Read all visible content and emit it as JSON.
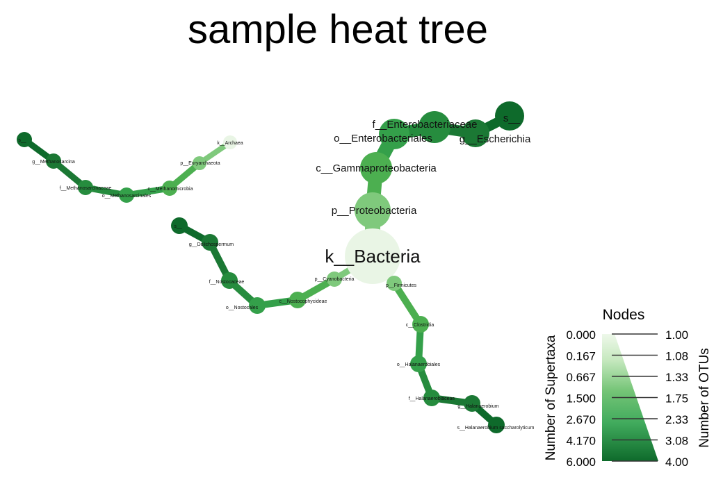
{
  "title": "sample heat tree",
  "legend": {
    "title": "Nodes",
    "left_axis_label": "Number of Supertaxa",
    "right_axis_label": "Number of OTUs",
    "left_ticks": [
      "0.000",
      "0.167",
      "0.667",
      "1.500",
      "2.670",
      "4.170",
      "6.000"
    ],
    "right_ticks": [
      "1.00",
      "1.08",
      "1.33",
      "1.75",
      "2.33",
      "3.08",
      "4.00"
    ],
    "color_low": "#e9f5e5",
    "color_high": "#0e6a2b"
  },
  "taxa": {
    "k_bacteria": "k__Bacteria",
    "p_proteobacteria": "p__Proteobacteria",
    "c_gammaproteobacteria": "c__Gammaproteobacteria",
    "o_enterobacteriales": "o__Enterobacteriales",
    "f_enterobacteriaceae": "f__Enterobacteriaceae",
    "g_escherichia": "g__Escherichia",
    "s_escherichia": "s__",
    "p_cyanobacteria": "p__Cyanobacteria",
    "c_nostocophycideae": "c__Nostocophycideae",
    "o_nostocales": "o__Nostocales",
    "f_nostocaceae": "f__Nostocaceae",
    "g_dolichospermum": "g__Dolichospermum",
    "s_dolichospermum": "s__",
    "p_firmicutes": "p__Firmicutes",
    "c_clostridia": "c__Clostridia",
    "o_halanaerobiales": "o__Halanaerobiales",
    "f_halanaerobiaceae": "f__Halanaerobiaceae",
    "g_halanaerobium": "g__Halanaerobium",
    "s_halanaerobium": "s__Halanaerobium saccharolyticum",
    "k_archaea": "k__Archaea",
    "p_euryarchaeota": "p__Euryarchaeota",
    "c_methanomicrobia": "c__Methanomicrobia",
    "o_methanosarcinales": "o__Methanosarcinales",
    "f_methanosarcinaceae": "f__Methanosarcinaceae",
    "g_methanosarcina": "g__Methanosarcina",
    "s_methanosarcina": "s__"
  },
  "node_values": {
    "k_bacteria": 0.0,
    "p_proteobacteria": 1.0,
    "c_gammaproteobacteria": 2.0,
    "o_enterobacteriales": 3.0,
    "f_enterobacteriaceae": 4.0,
    "g_escherichia": 5.0,
    "s_escherichia": 6.0,
    "p_cyanobacteria": 1.0,
    "c_nostocophycideae": 2.0,
    "o_nostocales": 3.0,
    "f_nostocaceae": 4.0,
    "g_dolichospermum": 5.0,
    "s_dolichospermum": 6.0,
    "p_firmicutes": 1.0,
    "c_clostridia": 2.0,
    "o_halanaerobiales": 3.0,
    "f_halanaerobiaceae": 4.0,
    "g_halanaerobium": 5.0,
    "s_halanaerobium": 6.0,
    "k_archaea": 0.0,
    "p_euryarchaeota": 1.0,
    "c_methanomicrobia": 2.0,
    "o_methanosarcinales": 3.0,
    "f_methanosarcinaceae": 4.0,
    "g_methanosarcina": 5.0,
    "s_methanosarcina": 6.0
  }
}
